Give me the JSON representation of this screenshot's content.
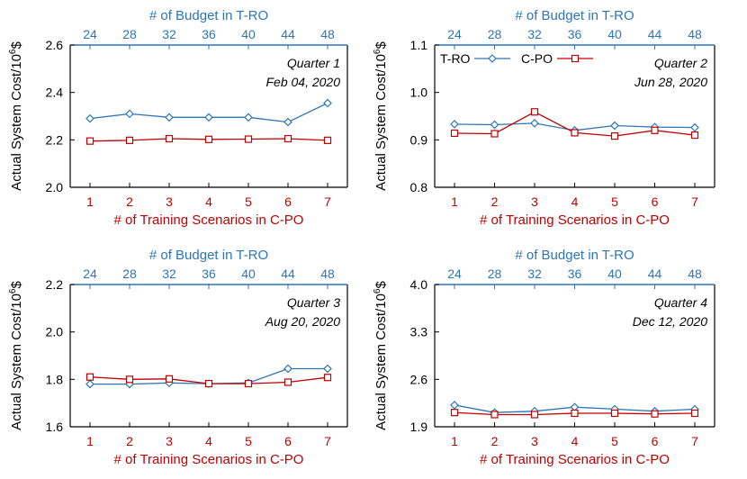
{
  "colors": {
    "tro": "#2E75B6",
    "cpo": "#C00000",
    "axis": "#000000",
    "plot": "#404040"
  },
  "chart_data": [
    {
      "type": "line",
      "quarter_label": "Quarter 1",
      "date_label": "Feb 04, 2020",
      "top_axis_title": "# of Budget in T-RO",
      "top_ticks": [
        "24",
        "28",
        "32",
        "36",
        "40",
        "44",
        "48"
      ],
      "xlabel": "# of Training Scenarios in C-PO",
      "x": [
        1,
        2,
        3,
        4,
        5,
        6,
        7
      ],
      "ylabel_main": "Actual System Cost/10",
      "ylabel_sup": "6",
      "ylabel_unit": "$",
      "ylim": [
        2.0,
        2.6
      ],
      "yticks": [
        2.0,
        2.2,
        2.4,
        2.6
      ],
      "ytick_labels": [
        "2.0",
        "2.2",
        "2.4",
        "2.6"
      ],
      "show_legend": false,
      "series": [
        {
          "name": "T-RO",
          "values": [
            2.29,
            2.31,
            2.295,
            2.295,
            2.295,
            2.275,
            2.355
          ]
        },
        {
          "name": "C-PO",
          "values": [
            2.195,
            2.198,
            2.205,
            2.202,
            2.203,
            2.205,
            2.198
          ]
        }
      ]
    },
    {
      "type": "line",
      "quarter_label": "Quarter 2",
      "date_label": "Jun 28, 2020",
      "top_axis_title": "# of Budget in T-RO",
      "top_ticks": [
        "24",
        "28",
        "32",
        "36",
        "40",
        "44",
        "48"
      ],
      "xlabel": "# of Training Scenarios in C-PO",
      "x": [
        1,
        2,
        3,
        4,
        5,
        6,
        7
      ],
      "ylabel_main": "Actual System Cost/10",
      "ylabel_sup": "6",
      "ylabel_unit": "$",
      "ylim": [
        0.8,
        1.1
      ],
      "yticks": [
        0.8,
        0.9,
        1.0,
        1.1
      ],
      "ytick_labels": [
        "0.8",
        "0.9",
        "1.0",
        "1.1"
      ],
      "show_legend": true,
      "series": [
        {
          "name": "T-RO",
          "values": [
            0.933,
            0.932,
            0.935,
            0.92,
            0.93,
            0.927,
            0.926
          ]
        },
        {
          "name": "C-PO",
          "values": [
            0.914,
            0.913,
            0.959,
            0.915,
            0.908,
            0.92,
            0.91
          ]
        }
      ]
    },
    {
      "type": "line",
      "quarter_label": "Quarter 3",
      "date_label": "Aug 20, 2020",
      "top_axis_title": "# of Budget in T-RO",
      "top_ticks": [
        "24",
        "28",
        "32",
        "36",
        "40",
        "44",
        "48"
      ],
      "xlabel": "# of Training Scenarios in C-PO",
      "x": [
        1,
        2,
        3,
        4,
        5,
        6,
        7
      ],
      "ylabel_main": "Actual System Cost/10",
      "ylabel_sup": "6",
      "ylabel_unit": "$",
      "ylim": [
        1.6,
        2.2
      ],
      "yticks": [
        1.6,
        1.8,
        2.0,
        2.2
      ],
      "ytick_labels": [
        "1.6",
        "1.8",
        "2.0",
        "2.2"
      ],
      "show_legend": false,
      "series": [
        {
          "name": "T-RO",
          "values": [
            1.78,
            1.78,
            1.785,
            1.782,
            1.785,
            1.845,
            1.845
          ]
        },
        {
          "name": "C-PO",
          "values": [
            1.81,
            1.8,
            1.802,
            1.782,
            1.782,
            1.788,
            1.808
          ]
        }
      ]
    },
    {
      "type": "line",
      "quarter_label": "Quarter 4",
      "date_label": "Dec 12, 2020",
      "top_axis_title": "# of Budget in T-RO",
      "top_ticks": [
        "24",
        "28",
        "32",
        "36",
        "40",
        "44",
        "48"
      ],
      "xlabel": "# of Training Scenarios in C-PO",
      "x": [
        1,
        2,
        3,
        4,
        5,
        6,
        7
      ],
      "ylabel_main": "Actual System Cost/10",
      "ylabel_sup": "6",
      "ylabel_unit": "$",
      "ylim": [
        1.9,
        4.0
      ],
      "yticks": [
        1.9,
        2.6,
        3.3,
        4.0
      ],
      "ytick_labels": [
        "1.9",
        "2.6",
        "3.3",
        "4.0"
      ],
      "show_legend": false,
      "series": [
        {
          "name": "T-RO",
          "values": [
            2.22,
            2.11,
            2.13,
            2.19,
            2.16,
            2.13,
            2.16
          ]
        },
        {
          "name": "C-PO",
          "values": [
            2.11,
            2.08,
            2.08,
            2.1,
            2.1,
            2.09,
            2.1
          ]
        }
      ]
    }
  ]
}
